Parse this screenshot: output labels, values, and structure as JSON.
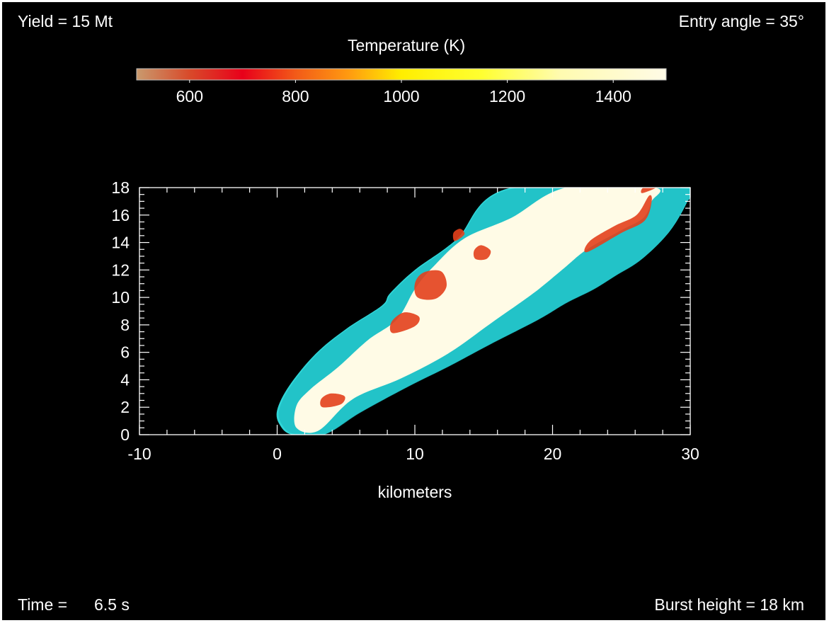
{
  "header": {
    "yield_text": "Yield = 15 Mt",
    "entry_text": "Entry angle = 35°"
  },
  "colorbar": {
    "title": "Temperature (K)",
    "min": 500,
    "max": 1500,
    "ticks": [
      600,
      800,
      1000,
      1200,
      1400
    ],
    "stops": [
      {
        "value": 500,
        "color": "#c99a6e"
      },
      {
        "value": 600,
        "color": "#d84a2a"
      },
      {
        "value": 700,
        "color": "#e8001a"
      },
      {
        "value": 800,
        "color": "#f25a18"
      },
      {
        "value": 900,
        "color": "#ff9a10"
      },
      {
        "value": 1000,
        "color": "#ffee00"
      },
      {
        "value": 1150,
        "color": "#ffff30"
      },
      {
        "value": 1300,
        "color": "#fffbb0"
      },
      {
        "value": 1500,
        "color": "#fffbe6"
      }
    ]
  },
  "footer": {
    "time_label": "Time =",
    "time_value": "6.5 s",
    "burst_text": "Burst height = 18 km"
  },
  "chart_data": {
    "type": "heatmap",
    "xlabel": "kilometers",
    "ylabel": "",
    "xlim": [
      -10,
      30
    ],
    "ylim": [
      0,
      18
    ],
    "x_ticks": [
      -10,
      0,
      10,
      20,
      30
    ],
    "y_ticks": [
      0,
      2,
      4,
      6,
      8,
      10,
      12,
      14,
      16,
      18
    ],
    "colors": {
      "background": "#000000",
      "envelope": "#2fd6d8",
      "hot": "#fffbe6",
      "warm": "#e3401c"
    },
    "regions": {
      "envelope": [
        [
          1.1,
          0.0
        ],
        [
          3.4,
          0.0
        ],
        [
          6.0,
          1.6
        ],
        [
          9.5,
          3.5
        ],
        [
          12.5,
          5.0
        ],
        [
          15.5,
          6.6
        ],
        [
          19.0,
          8.4
        ],
        [
          21.0,
          9.6
        ],
        [
          23.0,
          10.6
        ],
        [
          24.6,
          11.6
        ],
        [
          26.5,
          12.8
        ],
        [
          28.5,
          14.8
        ],
        [
          29.8,
          17.0
        ],
        [
          30.0,
          18.0
        ],
        [
          17.0,
          18.0
        ],
        [
          13.0,
          14.2
        ],
        [
          10.0,
          12.0
        ],
        [
          8.2,
          10.3
        ],
        [
          7.6,
          9.4
        ],
        [
          5.0,
          7.7
        ],
        [
          2.8,
          5.9
        ],
        [
          0.9,
          3.6
        ],
        [
          0.0,
          1.8
        ],
        [
          0.2,
          0.7
        ]
      ],
      "hot_core": [
        [
          1.4,
          0.5
        ],
        [
          3.0,
          0.3
        ],
        [
          5.5,
          2.6
        ],
        [
          9.0,
          4.1
        ],
        [
          12.4,
          5.9
        ],
        [
          15.5,
          8.1
        ],
        [
          18.6,
          10.3
        ],
        [
          20.8,
          12.1
        ],
        [
          22.5,
          13.5
        ],
        [
          25.0,
          14.9
        ],
        [
          26.6,
          15.8
        ],
        [
          27.2,
          17.0
        ],
        [
          27.4,
          18.0
        ],
        [
          21.0,
          18.0
        ],
        [
          17.0,
          15.8
        ],
        [
          13.6,
          14.3
        ],
        [
          11.3,
          12.2
        ],
        [
          10.0,
          10.6
        ],
        [
          8.7,
          8.4
        ],
        [
          6.6,
          6.9
        ],
        [
          4.4,
          4.9
        ],
        [
          2.4,
          3.3
        ],
        [
          1.4,
          2.1
        ]
      ],
      "warm_patches": [
        [
          [
            10.2,
            10.0
          ],
          [
            11.5,
            9.9
          ],
          [
            12.3,
            10.8
          ],
          [
            11.9,
            11.9
          ],
          [
            10.6,
            11.8
          ],
          [
            10.0,
            11.0
          ]
        ],
        [
          [
            22.5,
            13.3
          ],
          [
            25.0,
            14.7
          ],
          [
            26.7,
            15.6
          ],
          [
            27.2,
            17.0
          ],
          [
            27.0,
            17.4
          ],
          [
            26.1,
            16.0
          ],
          [
            24.5,
            15.2
          ],
          [
            22.7,
            14.1
          ]
        ],
        [
          [
            14.4,
            12.8
          ],
          [
            15.2,
            12.8
          ],
          [
            15.5,
            13.4
          ],
          [
            14.8,
            13.8
          ],
          [
            14.3,
            13.4
          ]
        ],
        [
          [
            3.3,
            2.0
          ],
          [
            4.6,
            2.2
          ],
          [
            4.9,
            2.8
          ],
          [
            3.9,
            3.0
          ],
          [
            3.2,
            2.6
          ]
        ],
        [
          [
            8.4,
            7.4
          ],
          [
            10.0,
            7.9
          ],
          [
            10.3,
            8.6
          ],
          [
            9.2,
            8.9
          ],
          [
            8.3,
            8.2
          ]
        ],
        [
          [
            12.9,
            14.1
          ],
          [
            13.6,
            14.6
          ],
          [
            13.3,
            15.0
          ],
          [
            12.8,
            14.7
          ]
        ],
        [
          [
            26.5,
            17.6
          ],
          [
            27.5,
            18.0
          ],
          [
            26.6,
            18.0
          ]
        ]
      ]
    }
  }
}
